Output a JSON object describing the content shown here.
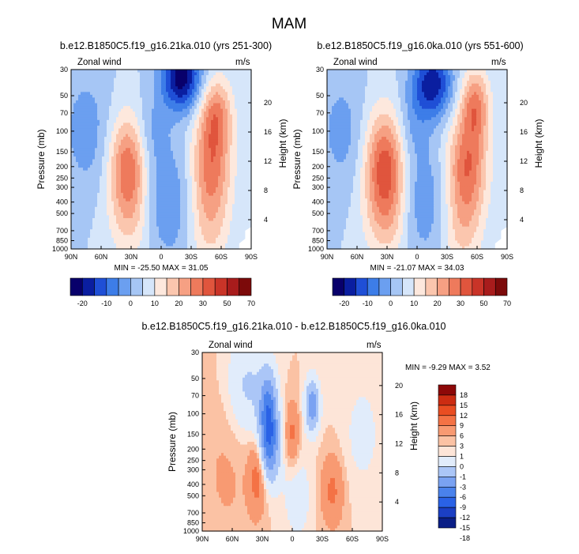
{
  "page": {
    "title": "MAM"
  },
  "chart_data": [
    {
      "type": "heatmap",
      "id": "panel1",
      "title": "b.e12.B1850C5.f19_g16.21ka.010 (yrs 251-300)",
      "left_label": "Zonal wind",
      "units": "m/s",
      "ylabel": "Pressure (mb)",
      "y2label": "Height (km)",
      "x_ticks": [
        "90N",
        "60N",
        "30N",
        "0",
        "30S",
        "60S",
        "90S"
      ],
      "x_range": [
        90,
        -90
      ],
      "p_ticks": [
        "30",
        "50",
        "70",
        "100",
        "150",
        "200",
        "250",
        "300",
        "400",
        "500",
        "700",
        "850",
        "1000"
      ],
      "p_range": [
        1000,
        30
      ],
      "h_ticks": [
        "4",
        "8",
        "12",
        "16",
        "20"
      ],
      "stats": "MIN = -25.50  MAX = 31.05",
      "levels": [
        -25,
        -20,
        -15,
        -10,
        -5,
        0,
        5,
        10,
        15,
        20,
        25,
        30,
        40,
        50,
        60,
        70
      ],
      "colorbar_labels": [
        "-20",
        "-10",
        "0",
        "10",
        "20",
        "30",
        "50",
        "70"
      ],
      "features": [
        {
          "lat": 33,
          "p": 200,
          "amp": 24,
          "slat": 13,
          "sp": 0.7
        },
        {
          "lat": 30,
          "p": 600,
          "amp": 8,
          "slat": 16,
          "sp": 0.6
        },
        {
          "lat": -50,
          "p": 200,
          "amp": 22,
          "slat": 14,
          "sp": 0.7
        },
        {
          "lat": -55,
          "p": 70,
          "amp": 18,
          "slat": 11,
          "sp": 0.5
        },
        {
          "lat": -48,
          "p": 700,
          "amp": 9,
          "slat": 14,
          "sp": 0.6
        },
        {
          "lat": -20,
          "p": 35,
          "amp": -28,
          "slat": 14,
          "sp": 0.45
        },
        {
          "lat": -5,
          "p": 400,
          "amp": -10,
          "slat": 18,
          "sp": 0.8
        },
        {
          "lat": 75,
          "p": 100,
          "amp": -8,
          "slat": 16,
          "sp": 0.8
        },
        {
          "lat": 10,
          "p": 100,
          "amp": -6,
          "slat": 12,
          "sp": 0.5
        }
      ]
    },
    {
      "type": "heatmap",
      "id": "panel2",
      "title": "b.e12.B1850C5.f19_g16.0ka.010 (yrs 551-600)",
      "left_label": "Zonal wind",
      "units": "m/s",
      "ylabel": "Pressure (mb)",
      "y2label": "Height (km)",
      "x_ticks": [
        "90N",
        "60N",
        "30N",
        "0",
        "30S",
        "60S",
        "90S"
      ],
      "x_range": [
        90,
        -90
      ],
      "p_ticks": [
        "30",
        "50",
        "70",
        "100",
        "150",
        "200",
        "250",
        "300",
        "400",
        "500",
        "700",
        "850",
        "1000"
      ],
      "p_range": [
        1000,
        30
      ],
      "h_ticks": [
        "4",
        "8",
        "12",
        "16",
        "20"
      ],
      "stats": "MIN = -21.07  MAX = 34.03",
      "levels": [
        -25,
        -20,
        -15,
        -10,
        -5,
        0,
        5,
        10,
        15,
        20,
        25,
        30,
        40,
        50,
        60,
        70
      ],
      "colorbar_labels": [
        "-20",
        "-10",
        "0",
        "10",
        "20",
        "30",
        "50",
        "70"
      ],
      "features": [
        {
          "lat": 32,
          "p": 200,
          "amp": 28,
          "slat": 14,
          "sp": 0.75
        },
        {
          "lat": 30,
          "p": 600,
          "amp": 9,
          "slat": 16,
          "sp": 0.6
        },
        {
          "lat": -50,
          "p": 200,
          "amp": 24,
          "slat": 14,
          "sp": 0.7
        },
        {
          "lat": -58,
          "p": 60,
          "amp": 20,
          "slat": 10,
          "sp": 0.5
        },
        {
          "lat": -45,
          "p": 700,
          "amp": 10,
          "slat": 14,
          "sp": 0.6
        },
        {
          "lat": -15,
          "p": 40,
          "amp": -24,
          "slat": 14,
          "sp": 0.45
        },
        {
          "lat": -5,
          "p": 400,
          "amp": -9,
          "slat": 18,
          "sp": 0.8
        },
        {
          "lat": 75,
          "p": 100,
          "amp": -7,
          "slat": 16,
          "sp": 0.8
        },
        {
          "lat": 5,
          "p": 90,
          "amp": -6,
          "slat": 12,
          "sp": 0.5
        }
      ]
    },
    {
      "type": "heatmap",
      "id": "panel3",
      "title": "b.e12.B1850C5.f19_g16.21ka.010 - b.e12.B1850C5.f19_g16.0ka.010",
      "left_label": "Zonal wind",
      "units": "m/s",
      "ylabel": "Pressure (mb)",
      "y2label": "Height (km)",
      "x_ticks": [
        "90N",
        "60N",
        "30N",
        "0",
        "30S",
        "60S",
        "90S"
      ],
      "x_range": [
        90,
        -90
      ],
      "p_ticks": [
        "30",
        "50",
        "70",
        "100",
        "150",
        "200",
        "250",
        "300",
        "400",
        "500",
        "700",
        "850",
        "1000"
      ],
      "p_range": [
        1000,
        30
      ],
      "h_ticks": [
        "4",
        "8",
        "12",
        "16",
        "20"
      ],
      "stats": "MIN = -9.29  MAX =  3.52",
      "levels": [
        -18,
        -15,
        -12,
        -9,
        -6,
        -3,
        -1,
        0,
        1,
        3,
        6,
        9,
        12,
        15,
        18
      ],
      "colorbar_labels": [
        "18",
        "15",
        "12",
        "9",
        "6",
        "3",
        "1",
        "0",
        "-1",
        "-3",
        "-6",
        "-9",
        "-12",
        "-15",
        "-18"
      ],
      "features": [
        {
          "lat": 24,
          "p": 100,
          "amp": -10,
          "slat": 6,
          "sp": 0.55
        },
        {
          "lat": 22,
          "p": 200,
          "amp": -7,
          "slat": 7,
          "sp": 0.5
        },
        {
          "lat": -20,
          "p": 85,
          "amp": -8,
          "slat": 5,
          "sp": 0.35
        },
        {
          "lat": 45,
          "p": 60,
          "amp": -3.5,
          "slat": 14,
          "sp": 0.7
        },
        {
          "lat": -5,
          "p": 500,
          "amp": -2,
          "slat": 10,
          "sp": 0.6
        },
        {
          "lat": 35,
          "p": 350,
          "amp": 4,
          "slat": 6,
          "sp": 0.5
        },
        {
          "lat": 0,
          "p": 150,
          "amp": 3.5,
          "slat": 5,
          "sp": 0.45
        },
        {
          "lat": -40,
          "p": 450,
          "amp": 3.5,
          "slat": 8,
          "sp": 0.5
        },
        {
          "lat": 65,
          "p": 300,
          "amp": 1.2,
          "slat": 20,
          "sp": 1.2
        },
        {
          "lat": -70,
          "p": 150,
          "amp": -1.5,
          "slat": 14,
          "sp": 0.8
        }
      ]
    }
  ],
  "colors": {
    "wind16": [
      "#08006b",
      "#0a1ea0",
      "#1f4fd6",
      "#3d7de8",
      "#6b9ff0",
      "#a6c6f5",
      "#d6e6fa",
      "#fde8dd",
      "#fbc6ae",
      "#f6a083",
      "#ee7a5c",
      "#e0553d",
      "#c93428",
      "#a81c1c",
      "#7c0a0a"
    ],
    "diff15": [
      "#0a1e86",
      "#1b3fc4",
      "#2a62e6",
      "#4a82ec",
      "#7aa2f2",
      "#abc6f7",
      "#e1ecfb",
      "#fde5d8",
      "#fbc2a4",
      "#f89a72",
      "#f47245",
      "#e94d22",
      "#cc2c12",
      "#8d0808"
    ]
  }
}
